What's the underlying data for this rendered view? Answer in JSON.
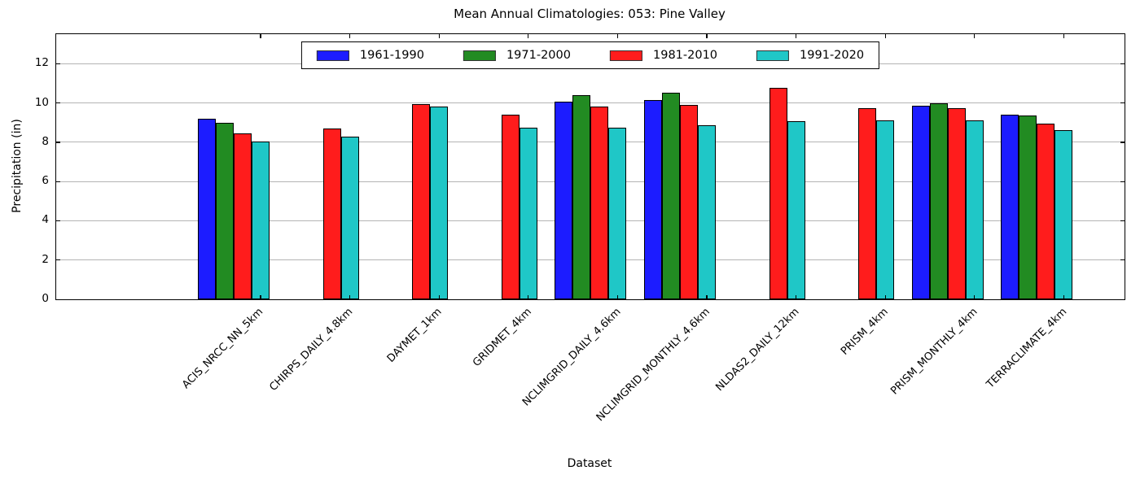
{
  "chart_data": {
    "type": "bar",
    "title": "Mean Annual Climatologies: 053: Pine Valley",
    "xlabel": "Dataset",
    "ylabel": "Precipitation (in)",
    "ylim": [
      0,
      13.5
    ],
    "yticks": [
      0,
      2,
      4,
      6,
      8,
      10,
      12
    ],
    "grid": "horizontal",
    "legend_position": "top-center-inside",
    "bar_edge_color": "#000000",
    "categories": [
      "ACIS_NRCC_NN_5km",
      "CHIRPS_DAILY_4.8km",
      "DAYMET_1km",
      "GRIDMET_4km",
      "NCLIMGRID_DAILY_4.6km",
      "NCLIMGRID_MONTHLY_4.6km",
      "NLDAS2_DAILY_12km",
      "PRISM_4km",
      "PRISM_MONTHLY_4km",
      "TERRACLIMATE_4km"
    ],
    "series": [
      {
        "name": "1961-1990",
        "color": "#1c1cff",
        "values": [
          9.2,
          null,
          null,
          null,
          10.05,
          10.15,
          null,
          null,
          9.85,
          9.4
        ]
      },
      {
        "name": "1971-2000",
        "color": "#228b22",
        "values": [
          9.0,
          null,
          null,
          null,
          10.4,
          10.5,
          null,
          null,
          10.0,
          9.35
        ]
      },
      {
        "name": "1981-2010",
        "color": "#ff1c1c",
        "values": [
          8.45,
          8.7,
          9.95,
          9.4,
          9.8,
          9.9,
          10.75,
          9.75,
          9.75,
          8.95
        ]
      },
      {
        "name": "1991-2020",
        "color": "#1fc7c7",
        "values": [
          8.05,
          8.3,
          9.8,
          8.75,
          8.75,
          8.85,
          9.05,
          9.1,
          9.1,
          8.6
        ]
      }
    ]
  }
}
